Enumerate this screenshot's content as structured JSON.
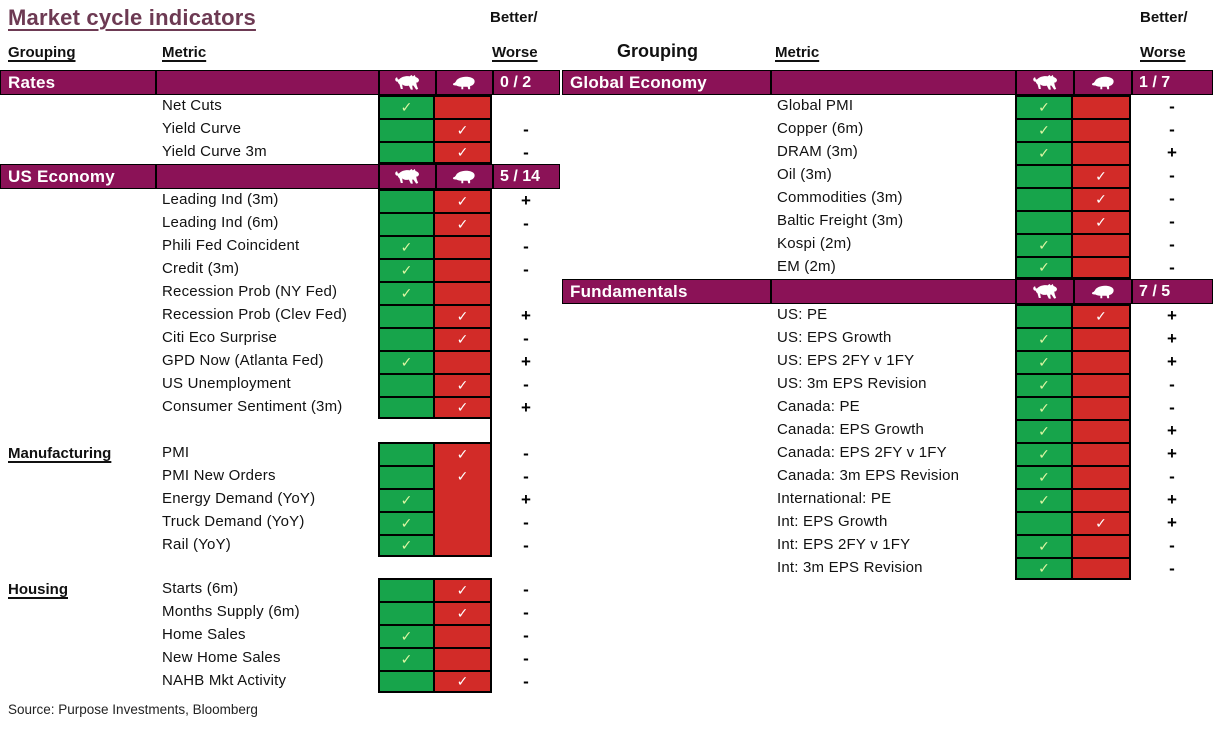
{
  "title": "Market cycle indicators",
  "source": "Source: Purpose Investments, Bloomberg",
  "headers": {
    "grouping": "Grouping",
    "metric": "Metric",
    "better": "Better/",
    "worse": "Worse"
  },
  "colors": {
    "bar": "#8b1257",
    "title": "#6d3a53",
    "green": "#17a44b",
    "red": "#d22b28",
    "check_on_green": "#ddf6a3",
    "check_on_red": "#ffffff",
    "border": "#000000"
  },
  "icons": {
    "bull": "bull-icon",
    "bear": "bear-icon",
    "check": "check-icon",
    "check_glyph": "✓"
  },
  "left_table": {
    "sections": [
      {
        "type": "bar",
        "label": "Rates",
        "count": "0 / 2",
        "rows": [
          {
            "metric": "Net Cuts",
            "bull": true,
            "bear": false,
            "change": ""
          },
          {
            "metric": "Yield Curve",
            "bull": false,
            "bear": true,
            "change": "-"
          },
          {
            "metric": "Yield Curve 3m",
            "bull": false,
            "bear": true,
            "change": "-"
          }
        ]
      },
      {
        "type": "bar",
        "label": "US Economy",
        "count": "5 / 14",
        "rows": [
          {
            "metric": "Leading Ind (3m)",
            "bull": false,
            "bear": true,
            "change": "+"
          },
          {
            "metric": "Leading Ind (6m)",
            "bull": false,
            "bear": true,
            "change": "-"
          },
          {
            "metric": "Phili Fed Coincident",
            "bull": true,
            "bear": false,
            "change": "-"
          },
          {
            "metric": "Credit (3m)",
            "bull": true,
            "bear": false,
            "change": "-"
          },
          {
            "metric": "Recession Prob (NY Fed)",
            "bull": true,
            "bear": false,
            "change": ""
          },
          {
            "metric": "Recession Prob (Clev Fed)",
            "bull": false,
            "bear": true,
            "change": "+"
          },
          {
            "metric": "Citi Eco Surprise",
            "bull": false,
            "bear": true,
            "change": "-"
          },
          {
            "metric": "GPD Now (Atlanta Fed)",
            "bull": true,
            "bear": false,
            "change": "+"
          },
          {
            "metric": "US Unemployment",
            "bull": false,
            "bear": true,
            "change": "-"
          },
          {
            "metric": "Consumer Sentiment (3m)",
            "bull": false,
            "bear": true,
            "change": "+"
          }
        ]
      },
      {
        "type": "gap",
        "h": 23,
        "line": true
      },
      {
        "type": "side-label",
        "label": "Manufacturing",
        "merged_bear": true,
        "rows": [
          {
            "metric": "PMI",
            "bull": false,
            "bear": true,
            "change": "-"
          },
          {
            "metric": "PMI New Orders",
            "bull": false,
            "bear": true,
            "change": "-"
          },
          {
            "metric": "Energy Demand (YoY)",
            "bull": true,
            "bear": false,
            "change": "+"
          },
          {
            "metric": "Truck Demand (YoY)",
            "bull": true,
            "bear": false,
            "change": "-"
          },
          {
            "metric": "Rail (YoY)",
            "bull": true,
            "bear": false,
            "change": "-"
          }
        ]
      },
      {
        "type": "gap",
        "h": 21,
        "line": false
      },
      {
        "type": "side-label",
        "label": "Housing",
        "rows": [
          {
            "metric": "Starts (6m)",
            "bull": false,
            "bear": true,
            "change": "-"
          },
          {
            "metric": "Months Supply (6m)",
            "bull": false,
            "bear": true,
            "change": "-"
          },
          {
            "metric": "Home Sales",
            "bull": true,
            "bear": false,
            "change": "-"
          },
          {
            "metric": "New Home Sales",
            "bull": true,
            "bear": false,
            "change": "-"
          },
          {
            "metric": "NAHB Mkt Activity",
            "bull": false,
            "bear": true,
            "change": "-"
          }
        ]
      }
    ]
  },
  "right_table": {
    "sections": [
      {
        "type": "bar",
        "label": "Global Economy",
        "count": "1 / 7",
        "rows": [
          {
            "metric": "Global PMI",
            "bull": true,
            "bear": false,
            "change": "-"
          },
          {
            "metric": "Copper (6m)",
            "bull": true,
            "bear": false,
            "change": "-"
          },
          {
            "metric": "DRAM (3m)",
            "bull": true,
            "bear": false,
            "change": "+"
          },
          {
            "metric": "Oil (3m)",
            "bull": false,
            "bear": true,
            "change": "-"
          },
          {
            "metric": "Commodities (3m)",
            "bull": false,
            "bear": true,
            "change": "-"
          },
          {
            "metric": "Baltic Freight (3m)",
            "bull": false,
            "bear": true,
            "change": "-"
          },
          {
            "metric": "Kospi (2m)",
            "bull": true,
            "bear": false,
            "change": "-"
          },
          {
            "metric": "EM (2m)",
            "bull": true,
            "bear": false,
            "change": "-"
          }
        ]
      },
      {
        "type": "bar",
        "label": "Fundamentals",
        "count": "7 / 5",
        "rows": [
          {
            "metric": "US: PE",
            "bull": false,
            "bear": true,
            "change": "+"
          },
          {
            "metric": "US: EPS Growth",
            "bull": true,
            "bear": false,
            "change": "+"
          },
          {
            "metric": "US: EPS 2FY v 1FY",
            "bull": true,
            "bear": false,
            "change": "+"
          },
          {
            "metric": "US: 3m EPS Revision",
            "bull": true,
            "bear": false,
            "change": "-"
          },
          {
            "metric": "Canada: PE",
            "bull": true,
            "bear": false,
            "change": "-"
          },
          {
            "metric": "Canada: EPS Growth",
            "bull": true,
            "bear": false,
            "change": "+"
          },
          {
            "metric": "Canada: EPS 2FY v 1FY",
            "bull": true,
            "bear": false,
            "change": "+"
          },
          {
            "metric": "Canada: 3m EPS Revision",
            "bull": true,
            "bear": false,
            "change": "-"
          },
          {
            "metric": "International: PE",
            "bull": true,
            "bear": false,
            "change": "+"
          },
          {
            "metric": "Int: EPS Growth",
            "bull": false,
            "bear": true,
            "change": "+"
          },
          {
            "metric": "Int: EPS 2FY v 1FY",
            "bull": true,
            "bear": false,
            "change": "-"
          },
          {
            "metric": "Int: 3m EPS Revision",
            "bull": true,
            "bear": false,
            "change": "-"
          }
        ]
      }
    ]
  }
}
